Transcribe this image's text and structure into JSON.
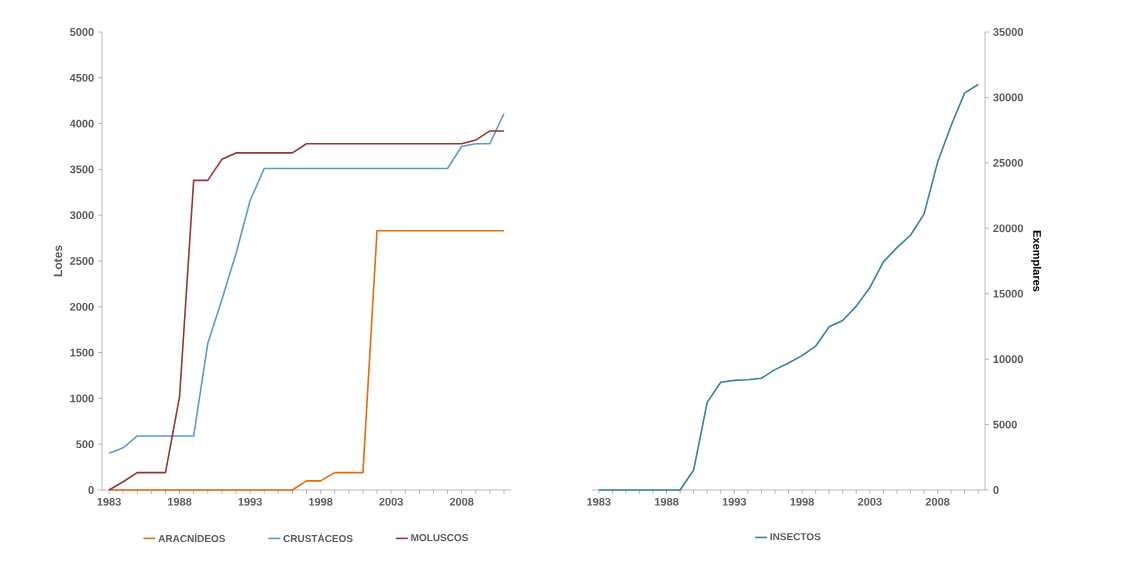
{
  "chart_data": [
    {
      "type": "line",
      "ylabel": "Lotes",
      "legend": "bottom",
      "x": [
        1983,
        1984,
        1985,
        1986,
        1987,
        1988,
        1989,
        1990,
        1991,
        1992,
        1993,
        1994,
        1995,
        1996,
        1997,
        1998,
        1999,
        2000,
        2001,
        2002,
        2003,
        2004,
        2005,
        2006,
        2007,
        2008,
        2009,
        2010,
        2011
      ],
      "xlim": [
        1982.5,
        2011.5
      ],
      "xticks": [
        1983,
        {
          "value": 1984,
          "label": null
        },
        {
          "value": 1985,
          "label": null
        },
        {
          "value": 1986,
          "label": null
        },
        {
          "value": 1987,
          "label": null
        },
        1988,
        {
          "value": 1989,
          "label": null
        },
        {
          "value": 1990,
          "label": null
        },
        {
          "value": 1991,
          "label": null
        },
        {
          "value": 1992,
          "label": null
        },
        1993,
        {
          "value": 1994,
          "label": null
        },
        {
          "value": 1995,
          "label": null
        },
        {
          "value": 1996,
          "label": null
        },
        {
          "value": 1997,
          "label": null
        },
        1998,
        {
          "value": 1999,
          "label": null
        },
        {
          "value": 2000,
          "label": null
        },
        {
          "value": 2001,
          "label": null
        },
        {
          "value": 2002,
          "label": null
        },
        2003,
        {
          "value": 2004,
          "label": null
        },
        {
          "value": 2005,
          "label": null
        },
        {
          "value": 2006,
          "label": null
        },
        {
          "value": 2007,
          "label": null
        },
        2008,
        {
          "value": 2009,
          "label": null
        },
        {
          "value": 2010,
          "label": null
        },
        {
          "value": 2011,
          "label": null
        }
      ],
      "ylim": [
        0,
        5000
      ],
      "yticks": [
        0,
        500,
        1000,
        1500,
        2000,
        2500,
        3000,
        3500,
        4000,
        4500,
        5000
      ],
      "series": [
        {
          "name": "ARACNÍDEOS",
          "color": "#e46c0a",
          "values": [
            0,
            0,
            0,
            0,
            0,
            0,
            0,
            0,
            0,
            0,
            0,
            0,
            0,
            0,
            100,
            100,
            190,
            190,
            190,
            2830,
            2830,
            2830,
            2830,
            2830,
            2830,
            2830,
            2830,
            2830,
            2830
          ]
        },
        {
          "name": "CRUSTÁCEOS",
          "color": "#5b9bd5",
          "values": [
            400,
            460,
            590,
            590,
            590,
            590,
            590,
            1600,
            2080,
            2580,
            3160,
            3510,
            3510,
            3510,
            3510,
            3510,
            3510,
            3510,
            3510,
            3510,
            3510,
            3510,
            3510,
            3510,
            3510,
            3750,
            3780,
            3780,
            4110
          ]
        },
        {
          "name": "MOLUSCOS",
          "color": "#953735",
          "values": [
            0,
            90,
            190,
            190,
            190,
            1020,
            3380,
            3380,
            3610,
            3680,
            3680,
            3680,
            3680,
            3680,
            3780,
            3780,
            3780,
            3780,
            3780,
            3780,
            3780,
            3780,
            3780,
            3780,
            3780,
            3780,
            3820,
            3920,
            3920
          ]
        }
      ]
    },
    {
      "type": "line",
      "y2label": "Exemplares",
      "legend": "bottom",
      "x": [
        1983,
        1984,
        1985,
        1986,
        1987,
        1988,
        1989,
        1990,
        1991,
        1992,
        1993,
        1994,
        1995,
        1996,
        1997,
        1998,
        1999,
        2000,
        2001,
        2002,
        2003,
        2004,
        2005,
        2006,
        2007,
        2008,
        2009,
        2010,
        2011
      ],
      "xlim": [
        1982.5,
        2011.5
      ],
      "xticks": [
        1983,
        {
          "value": 1984,
          "label": null
        },
        {
          "value": 1985,
          "label": null
        },
        {
          "value": 1986,
          "label": null
        },
        {
          "value": 1987,
          "label": null
        },
        1988,
        {
          "value": 1989,
          "label": null
        },
        {
          "value": 1990,
          "label": null
        },
        {
          "value": 1991,
          "label": null
        },
        {
          "value": 1992,
          "label": null
        },
        1993,
        {
          "value": 1994,
          "label": null
        },
        {
          "value": 1995,
          "label": null
        },
        {
          "value": 1996,
          "label": null
        },
        {
          "value": 1997,
          "label": null
        },
        1998,
        {
          "value": 1999,
          "label": null
        },
        {
          "value": 2000,
          "label": null
        },
        {
          "value": 2001,
          "label": null
        },
        {
          "value": 2002,
          "label": null
        },
        2003,
        {
          "value": 2004,
          "label": null
        },
        {
          "value": 2005,
          "label": null
        },
        {
          "value": 2006,
          "label": null
        },
        {
          "value": 2007,
          "label": null
        },
        2008,
        {
          "value": 2009,
          "label": null
        },
        {
          "value": 2010,
          "label": null
        },
        {
          "value": 2011,
          "label": null
        }
      ],
      "y2lim": [
        0,
        35000
      ],
      "y2ticks": [
        0,
        5000,
        10000,
        15000,
        20000,
        25000,
        30000,
        35000
      ],
      "series": [
        {
          "name": "INSECTOS",
          "color": "#31859c",
          "axis": "y2",
          "values": [
            0,
            0,
            0,
            0,
            0,
            0,
            0,
            1530,
            6700,
            8230,
            8380,
            8430,
            8540,
            9200,
            9710,
            10270,
            10990,
            12470,
            12950,
            14050,
            15460,
            17430,
            18520,
            19470,
            21080,
            25040,
            27850,
            30350,
            30990
          ]
        }
      ]
    }
  ]
}
